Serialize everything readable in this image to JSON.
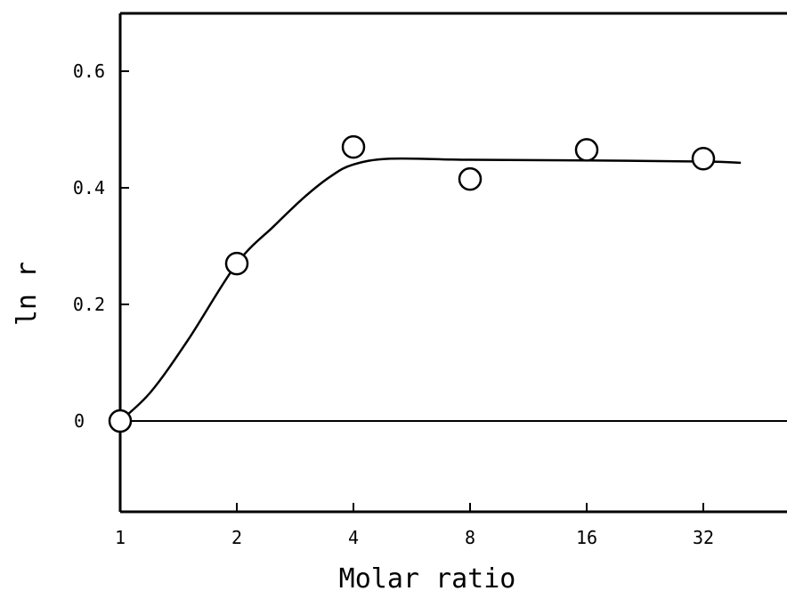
{
  "chart_data": {
    "type": "scatter",
    "xlabel": "Molar ratio",
    "ylabel": "ln r",
    "x_scale": "log2",
    "x_ticks": [
      1,
      2,
      4,
      8,
      16,
      32
    ],
    "x_tick_labels": [
      "1",
      "2",
      "4",
      "8",
      "16",
      "32"
    ],
    "y_ticks": [
      0,
      0.2,
      0.4,
      0.6
    ],
    "y_tick_labels": [
      "0",
      "0.2",
      "0.4",
      "0.6"
    ],
    "xlim": [
      1,
      50
    ],
    "ylim": [
      -0.175,
      0.69
    ],
    "grid": false,
    "series": [
      {
        "marker": "open-circle",
        "x": [
          1,
          2,
          4,
          8,
          16,
          32
        ],
        "y": [
          0,
          0.27,
          0.47,
          0.415,
          0.465,
          0.45
        ]
      }
    ],
    "fit_curve": {
      "style": "solid-line",
      "x": [
        1,
        1.2,
        1.5,
        2,
        2.5,
        3,
        3.5,
        4,
        5,
        8,
        16,
        32,
        40
      ],
      "y": [
        0,
        0.05,
        0.14,
        0.27,
        0.335,
        0.385,
        0.42,
        0.44,
        0.45,
        0.448,
        0.447,
        0.445,
        0.443
      ]
    },
    "reference_line": {
      "y": 0
    }
  }
}
